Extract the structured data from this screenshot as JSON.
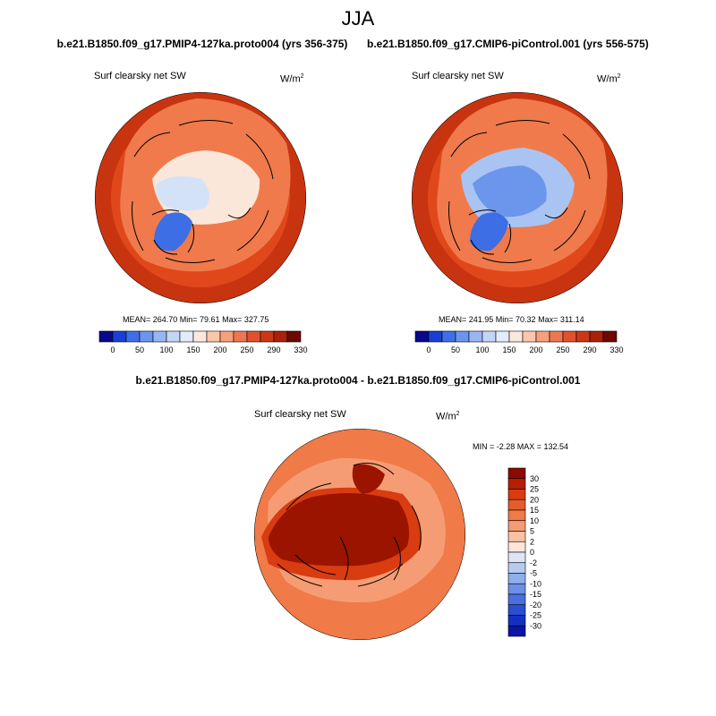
{
  "figure": {
    "season": "JJA",
    "left_title": "b.e21.B1850.f09_g17.PMIP4-127ka.proto004 (yrs 356-375)",
    "right_title": "b.e21.B1850.f09_g17.CMIP6-piControl.001 (yrs 556-575)",
    "diff_title": "b.e21.B1850.f09_g17.PMIP4-127ka.proto004 - b.e21.B1850.f09_g17.CMIP6-piControl.001"
  },
  "panels": {
    "left": {
      "variable": "Surf clearsky net SW",
      "units": "W/m",
      "units_sup": "2",
      "stats": "MEAN= 264.70  Min=  79.61  Max= 327.75"
    },
    "right": {
      "variable": "Surf clearsky net SW",
      "units": "W/m",
      "units_sup": "2",
      "stats": "MEAN= 241.95  Min=  70.32  Max= 311.14"
    },
    "diff": {
      "variable": "Surf clearsky net SW",
      "units": "W/m",
      "units_sup": "2",
      "stats": "MIN =  -2.28 MAX = 132.54"
    }
  },
  "colorbars": {
    "abs_labels": [
      "0",
      "50",
      "100",
      "150",
      "200",
      "250",
      "290",
      "330"
    ],
    "abs_colors": [
      "#08088a",
      "#1a3fd6",
      "#3f6fe8",
      "#6b95ee",
      "#98b6f2",
      "#c4d6f6",
      "#e3ecfa",
      "#fde9dc",
      "#fbc7ab",
      "#f6a07c",
      "#ee7650",
      "#e3502c",
      "#cc3814",
      "#a82108",
      "#6e0900"
    ],
    "diff_labels": [
      "30",
      "25",
      "20",
      "15",
      "10",
      "5",
      "2",
      "0",
      "-2",
      "-5",
      "-10",
      "-15",
      "-20",
      "-25",
      "-30"
    ],
    "diff_colors": [
      "#8c0a00",
      "#b81e00",
      "#d83c10",
      "#e55c2c",
      "#f07a48",
      "#f59c74",
      "#f9c2a4",
      "#fde6d6",
      "#dce6f6",
      "#b7cbf1",
      "#8eaeec",
      "#6c90e6",
      "#4a70de",
      "#2a4ed4",
      "#1430c2",
      "#0a14a8"
    ]
  },
  "maps": {
    "left": {
      "ocean": "#e0481c",
      "outer": "#c93410",
      "land": "#f07a4c",
      "ice_center": "#fbe6da",
      "greenland": "#3e6ee6",
      "ice_blue": "#d4e2f8"
    },
    "right": {
      "ocean": "#e0481c",
      "outer": "#c93410",
      "land": "#f07a4c",
      "ice_center": "#6c95ec",
      "greenland": "#3e6ee6",
      "ice_blue": "#a9c4f2"
    },
    "diff": {
      "base": "#f07a48",
      "light": "#f59c74",
      "dark": "#9a1400",
      "mid": "#d83c10"
    }
  }
}
